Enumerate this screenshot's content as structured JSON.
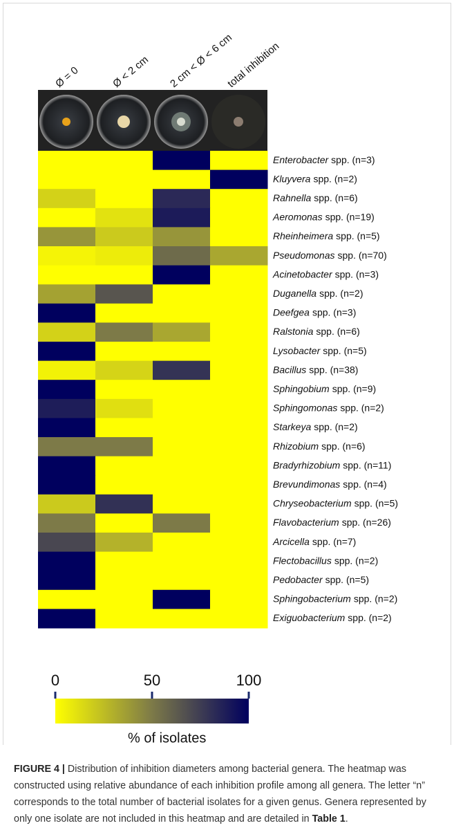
{
  "chart_data": {
    "type": "heatmap",
    "columns": [
      "Ø = 0",
      "Ø < 2 cm",
      "2 cm < Ø < 6 cm",
      "total inhibition"
    ],
    "rows": [
      {
        "genus": "Enterobacter",
        "suffix": "spp. (n=3)"
      },
      {
        "genus": "Kluyvera",
        "suffix": "spp. (n=2)"
      },
      {
        "genus": "Rahnella",
        "suffix": "spp. (n=6)"
      },
      {
        "genus": "Aeromonas",
        "suffix": "spp. (n=19)"
      },
      {
        "genus": "Rheinheimera",
        "suffix": "spp. (n=5)"
      },
      {
        "genus": "Pseudomonas",
        "suffix": "spp. (n=70)"
      },
      {
        "genus": "Acinetobacter",
        "suffix": "spp. (n=3)"
      },
      {
        "genus": "Duganella",
        "suffix": "spp. (n=2)"
      },
      {
        "genus": "Deefgea",
        "suffix": "spp. (n=3)"
      },
      {
        "genus": "Ralstonia",
        "suffix": "spp. (n=6)"
      },
      {
        "genus": "Lysobacter",
        "suffix": "spp. (n=5)"
      },
      {
        "genus": "Bacillus",
        "suffix": "spp. (n=38)"
      },
      {
        "genus": "Sphingobium",
        "suffix": "spp. (n=9)"
      },
      {
        "genus": "Sphingomonas",
        "suffix": "spp. (n=2)"
      },
      {
        "genus": "Starkeya",
        "suffix": "spp. (n=2)"
      },
      {
        "genus": "Rhizobium",
        "suffix": "spp. (n=6)"
      },
      {
        "genus": "Bradyrhizobium",
        "suffix": "spp. (n=11)"
      },
      {
        "genus": "Brevundimonas",
        "suffix": "spp. (n=4)"
      },
      {
        "genus": "Chryseobacterium",
        "suffix": "spp. (n=5)"
      },
      {
        "genus": "Flavobacterium",
        "suffix": "spp. (n=26)"
      },
      {
        "genus": "Arcicella",
        "suffix": "spp. (n=7)"
      },
      {
        "genus": "Flectobacillus",
        "suffix": "spp. (n=2)"
      },
      {
        "genus": "Pedobacter",
        "suffix": "spp. (n=5)"
      },
      {
        "genus": "Sphingobacterium",
        "suffix": "spp. (n=2)"
      },
      {
        "genus": "Exiguobacterium",
        "suffix": "spp. (n=2)"
      }
    ],
    "values": [
      [
        0,
        0,
        100,
        0
      ],
      [
        0,
        0,
        0,
        100
      ],
      [
        17,
        0,
        83,
        0
      ],
      [
        0,
        11,
        89,
        0
      ],
      [
        40,
        20,
        40,
        0
      ],
      [
        4,
        7,
        56,
        33
      ],
      [
        0,
        0,
        100,
        0
      ],
      [
        35,
        65,
        0,
        0
      ],
      [
        100,
        0,
        0,
        0
      ],
      [
        17,
        50,
        33,
        0
      ],
      [
        100,
        0,
        0,
        0
      ],
      [
        5,
        16,
        79,
        0
      ],
      [
        100,
        0,
        0,
        0
      ],
      [
        88,
        12,
        0,
        0
      ],
      [
        100,
        0,
        0,
        0
      ],
      [
        50,
        50,
        0,
        0
      ],
      [
        100,
        0,
        0,
        0
      ],
      [
        100,
        0,
        0,
        0
      ],
      [
        20,
        80,
        0,
        0
      ],
      [
        50,
        0,
        50,
        0
      ],
      [
        71,
        29,
        0,
        0
      ],
      [
        100,
        0,
        0,
        0
      ],
      [
        100,
        0,
        0,
        0
      ],
      [
        0,
        0,
        100,
        0
      ],
      [
        100,
        0,
        0,
        0
      ]
    ],
    "colormap": [
      "#ffff00",
      "#7d7a48",
      "#00005e"
    ],
    "clim": [
      0,
      100
    ],
    "cticks": [
      0,
      50,
      100
    ],
    "colorbar_label": "% of isolates"
  },
  "caption": {
    "label": "FIGURE 4 |",
    "text": " Distribution of inhibition diameters among bacterial genera. The heatmap was constructed using relative abundance of each inhibition profile among all genera. The letter “n” corresponds to the total number of bacterial isolates for a given genus. Genera represented by only one isolate are not included in this heatmap and are detailed in ",
    "table_ref": "Table 1",
    "end": "."
  }
}
